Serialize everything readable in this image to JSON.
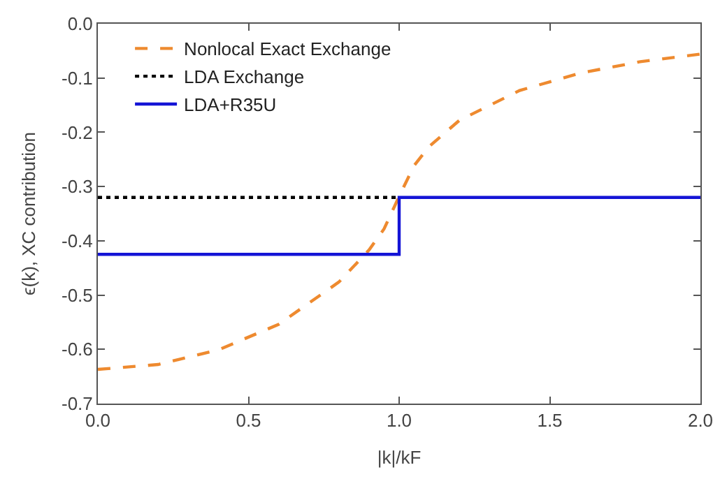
{
  "chart_data": {
    "type": "line",
    "xlabel": "|k|/kF",
    "ylabel": "ϵ(k), XC contribution",
    "xlim": [
      0,
      2
    ],
    "xticks": [
      {
        "value": 0,
        "label": "0.0"
      },
      0.5,
      {
        "value": 1,
        "label": "1.0"
      },
      1.5,
      {
        "value": 2,
        "label": "2.0"
      }
    ],
    "ylim": [
      -0.7,
      0
    ],
    "yticks": [
      -0.7,
      -0.6,
      -0.5,
      -0.4,
      -0.3,
      -0.2,
      -0.1,
      {
        "value": 0,
        "label": "0.0"
      }
    ],
    "legend": "top left",
    "marker": "none",
    "series": [
      {
        "name": "Nonlocal Exact Exchange",
        "color": "#ee8a2f",
        "line_style": "dashed",
        "x": [
          0,
          0.2,
          0.4,
          0.6,
          0.8,
          0.9,
          0.95,
          1,
          1.05,
          1.1,
          1.2,
          1.4,
          1.6,
          1.8,
          2
        ],
        "values": [
          -0.637,
          -0.628,
          -0.601,
          -0.554,
          -0.476,
          -0.417,
          -0.378,
          -0.318,
          -0.261,
          -0.226,
          -0.178,
          -0.123,
          -0.091,
          -0.07,
          -0.056
        ]
      },
      {
        "name": "LDA Exchange",
        "color": "#000000",
        "line_style": "dotted",
        "x": [
          0,
          1
        ],
        "values": [
          -0.32,
          -0.32
        ]
      },
      {
        "name": "LDA+R35U",
        "color": "#1414d6",
        "line_style": "solid",
        "x": [
          0,
          1,
          1,
          2
        ],
        "values": [
          -0.425,
          -0.425,
          -0.32,
          -0.32
        ]
      }
    ]
  }
}
